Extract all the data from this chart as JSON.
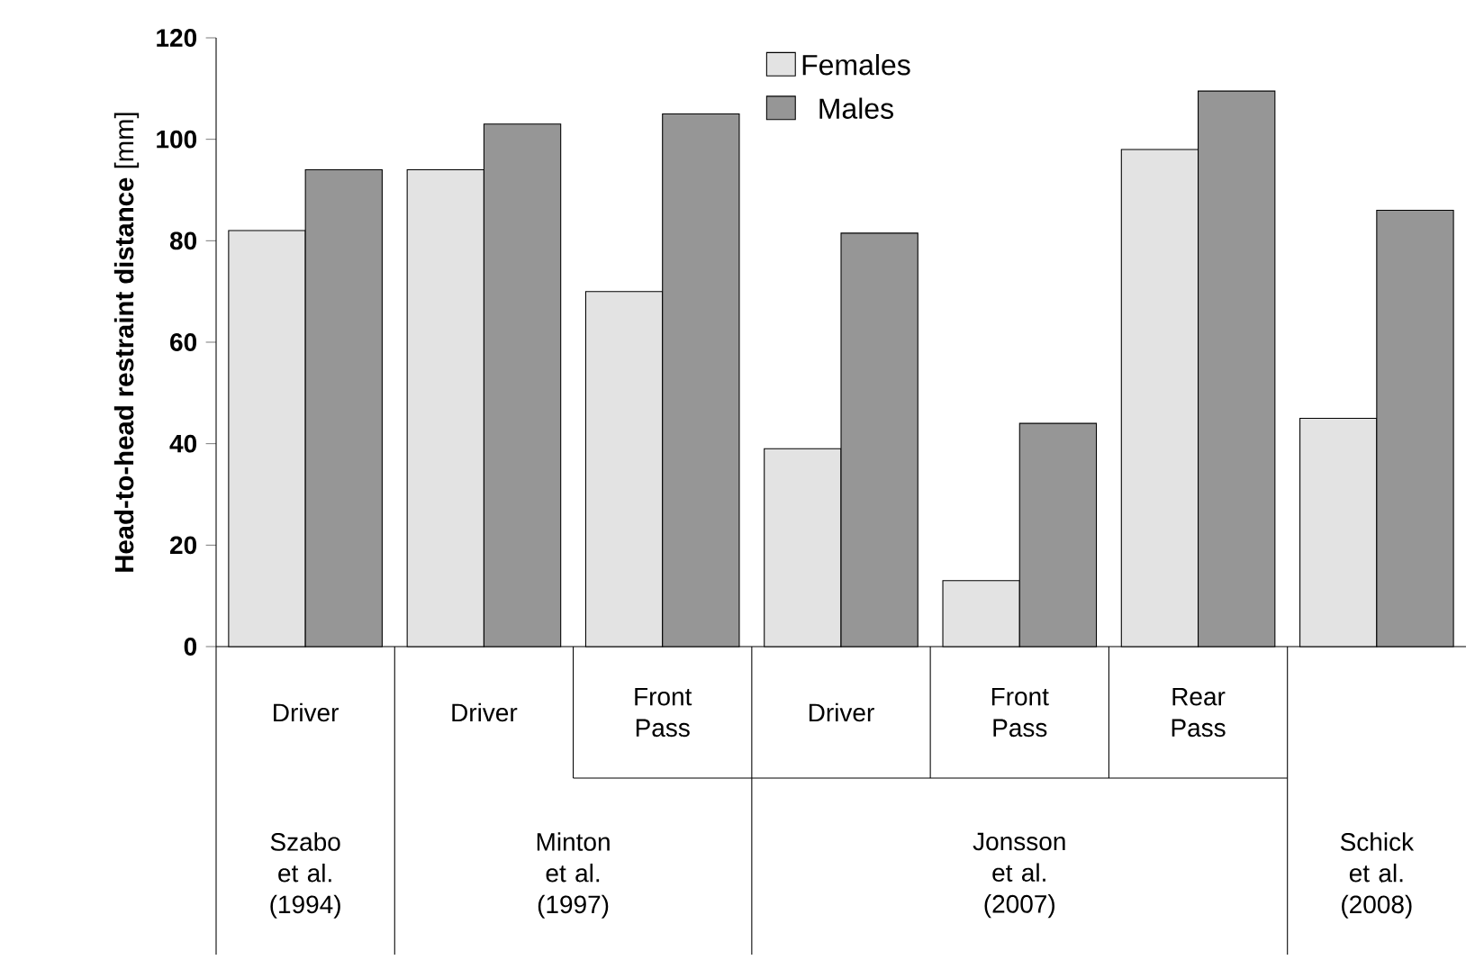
{
  "chart_data": {
    "type": "bar",
    "ylabel": "**Head-to-head restraint distance** [mm]",
    "categories": [
      "Driver",
      "Driver",
      "Front Pass",
      "Driver",
      "Front Pass",
      "Rear Pass",
      null
    ],
    "series": [
      {
        "name": "Females",
        "color": "#e3e3e3",
        "values": [
          82,
          94,
          70,
          39,
          13,
          98,
          45
        ]
      },
      {
        "name": "Males",
        "color": "#969696",
        "values": [
          94,
          103,
          105,
          81.5,
          44,
          109.5,
          86
        ]
      }
    ],
    "ylim": [
      0,
      120
    ],
    "yticks": [
      0,
      20,
      40,
      60,
      80,
      100,
      120
    ],
    "legend": "top",
    "annotations": [
      "Szabo et al. (1994)",
      "Minton et al. (1997)",
      "Jonsson et al. (2007)",
      "Schick et al. (2008)"
    ]
  }
}
